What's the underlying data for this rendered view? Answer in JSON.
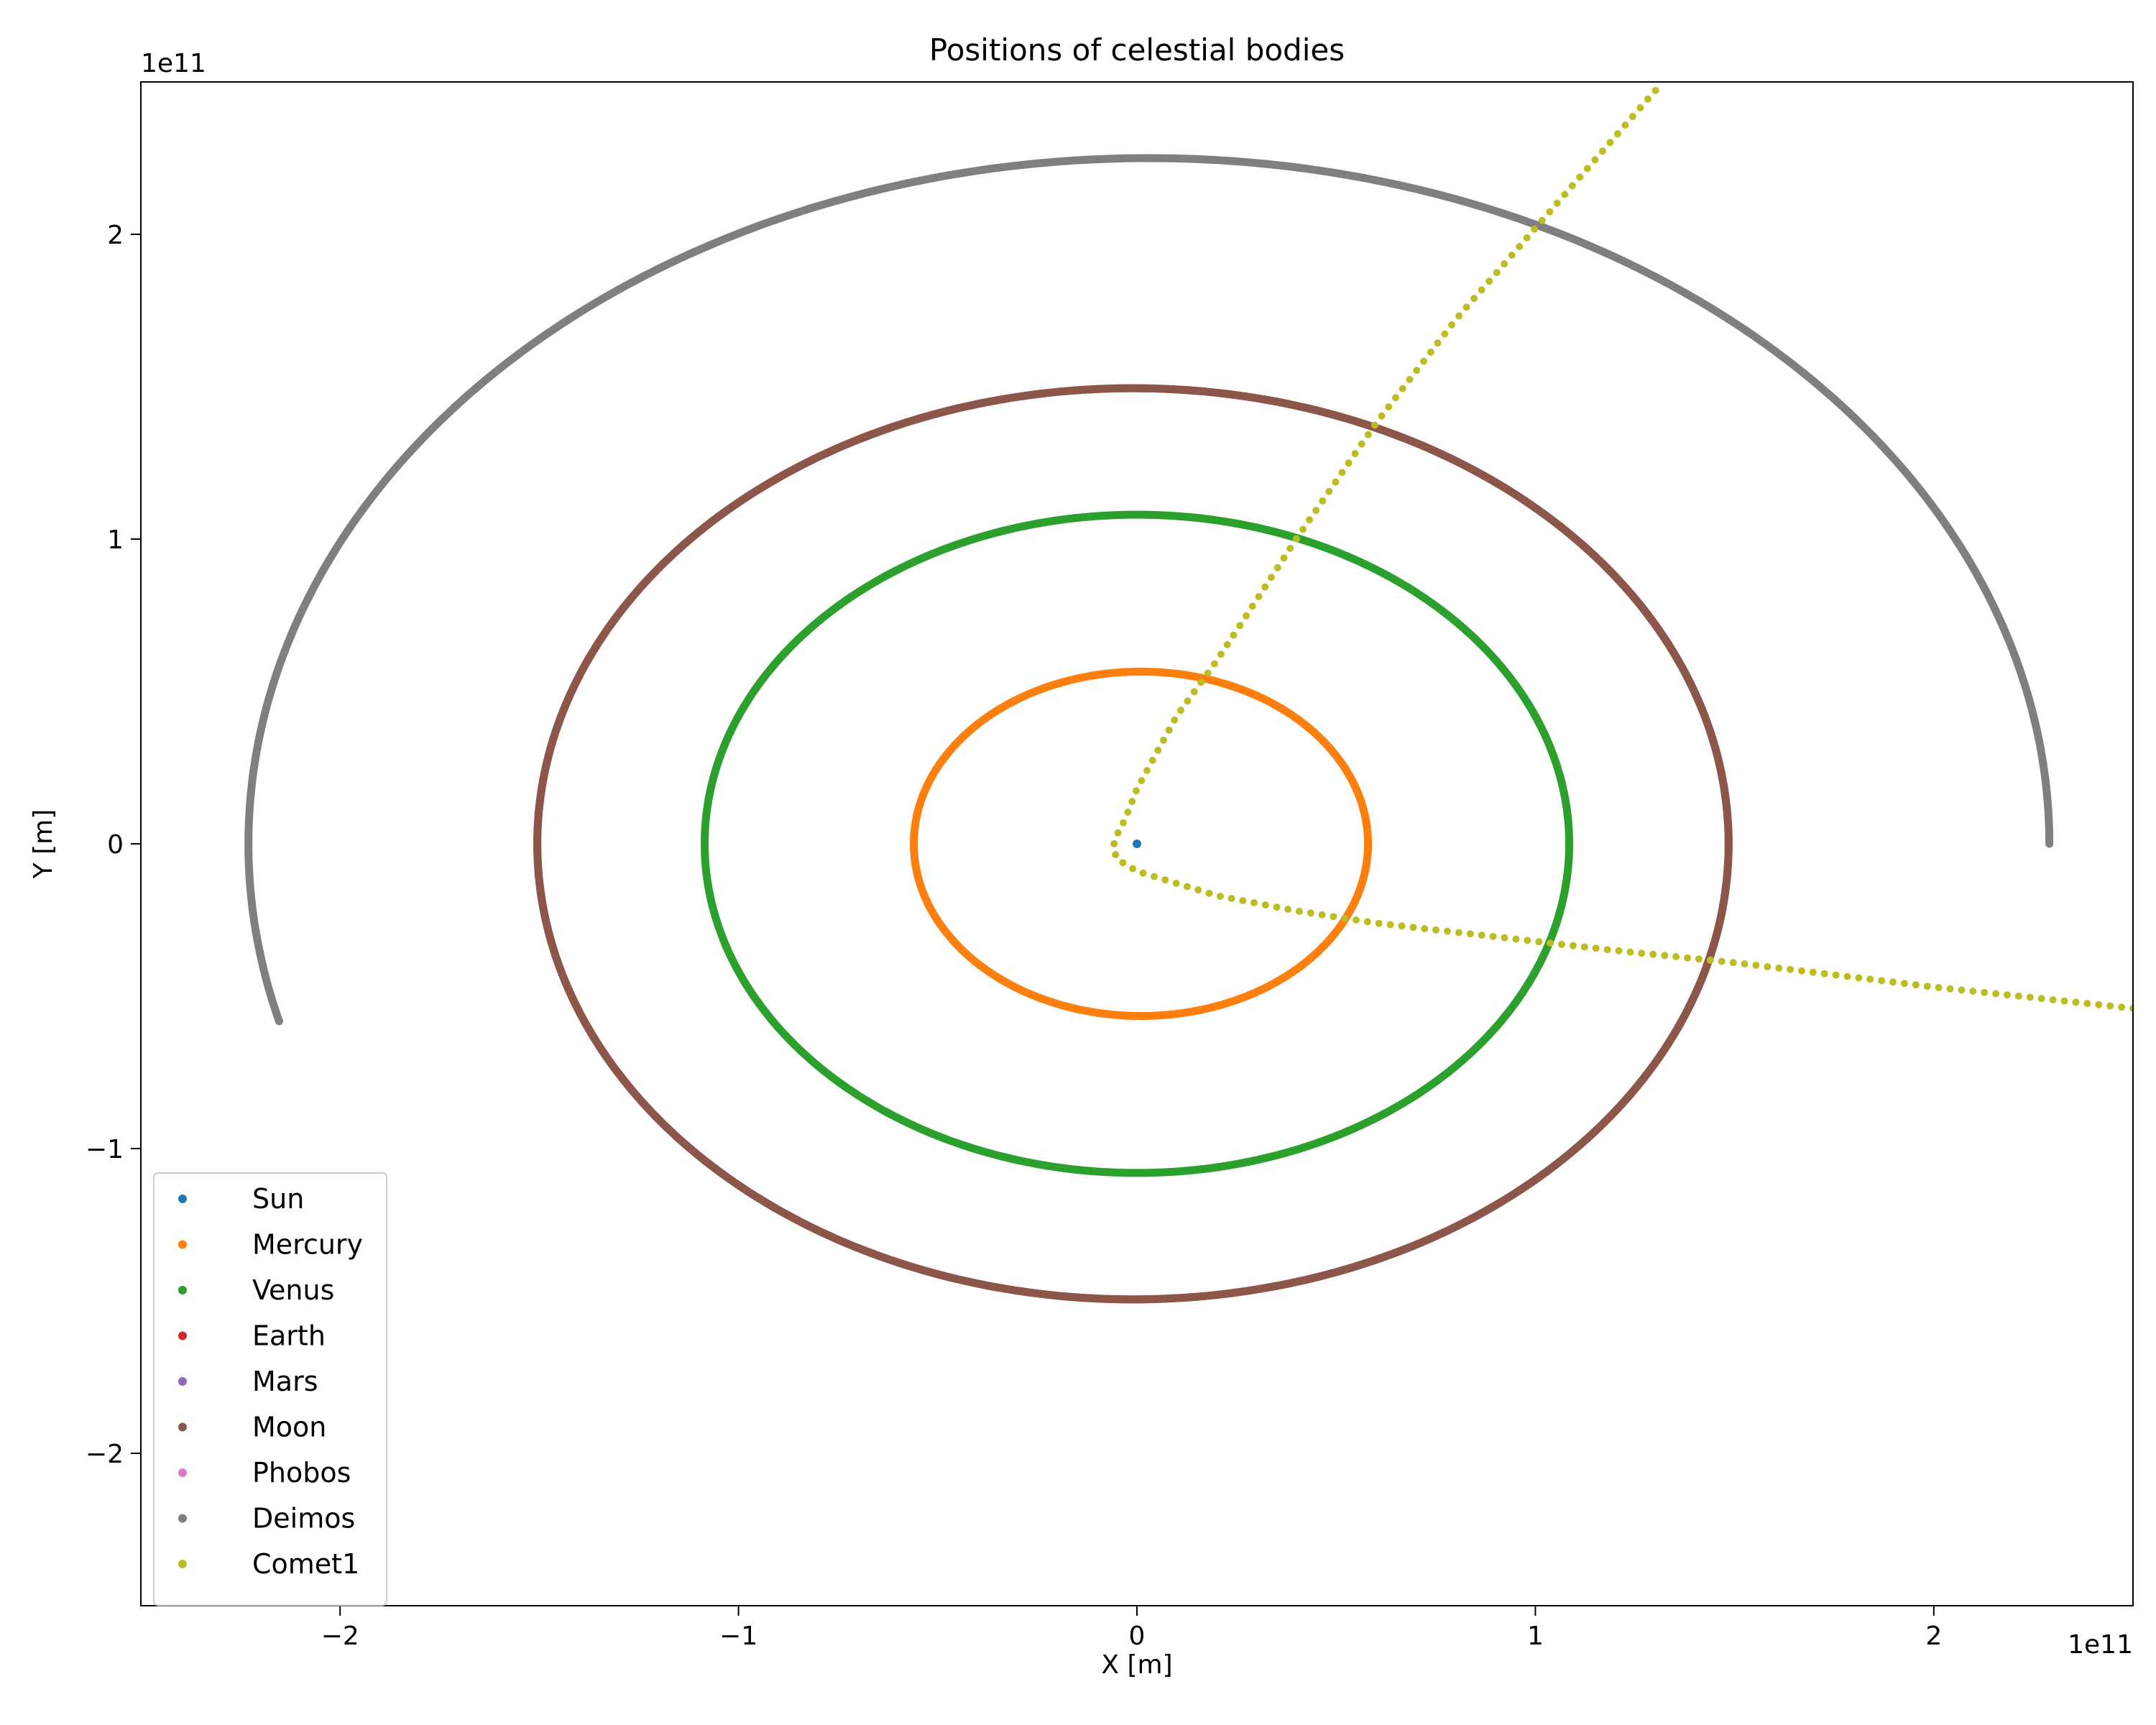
{
  "chart_data": {
    "type": "scatter",
    "title": "Positions of celestial bodies",
    "xlabel": "X [m]",
    "ylabel": "Y [m]",
    "x_offset_label": "1e11",
    "y_offset_label": "1e11",
    "xlim": [
      -2.5,
      2.5
    ],
    "ylim": [
      -2.5,
      2.5
    ],
    "grid": false,
    "legend_position": "lower-left",
    "x_ticks": [
      {
        "value": -2,
        "label": "−2"
      },
      {
        "value": -1,
        "label": "−1"
      },
      {
        "value": 0,
        "label": "0"
      },
      {
        "value": 1,
        "label": "1"
      },
      {
        "value": 2,
        "label": "2"
      }
    ],
    "y_ticks": [
      {
        "value": -2,
        "label": "−2"
      },
      {
        "value": -1,
        "label": "−1"
      },
      {
        "value": 0,
        "label": "0"
      },
      {
        "value": 1,
        "label": "1"
      },
      {
        "value": 2,
        "label": "2"
      }
    ],
    "series": [
      {
        "name": "Sun",
        "color": "#1f77b4",
        "kind": "point",
        "x": 0.0,
        "y": 0.0
      },
      {
        "name": "Mercury",
        "color": "#ff7f0e",
        "kind": "ellipse",
        "cx": 0.01,
        "cy": 0.0,
        "rx": 0.57,
        "ry": 0.565,
        "theta_start": 0,
        "theta_end": 360
      },
      {
        "name": "Venus",
        "color": "#2ca02c",
        "kind": "ellipse",
        "cx": 0.0,
        "cy": 0.0,
        "rx": 1.085,
        "ry": 1.08,
        "theta_start": 0,
        "theta_end": 360
      },
      {
        "name": "Earth",
        "color": "#d62728",
        "kind": "ellipse",
        "cx": -0.01,
        "cy": 0.0,
        "rx": 1.495,
        "ry": 1.495,
        "theta_start": 0,
        "theta_end": 360
      },
      {
        "name": "Mars",
        "color": "#9467bd",
        "kind": "none"
      },
      {
        "name": "Moon",
        "color": "#8c564b",
        "kind": "ellipse",
        "cx": -0.01,
        "cy": 0.0,
        "rx": 1.495,
        "ry": 1.495,
        "theta_start": 0,
        "theta_end": 360
      },
      {
        "name": "Phobos",
        "color": "#e377c2",
        "kind": "none"
      },
      {
        "name": "Deimos",
        "color": "#7f7f7f",
        "kind": "ellipse",
        "cx": 0.03,
        "cy": 0.0,
        "rx": 2.26,
        "ry": 2.25,
        "theta_start": 0,
        "theta_end": 195
      },
      {
        "name": "Comet1",
        "color": "#bcbd22",
        "kind": "polyline",
        "points": [
          [
            2.5,
            -0.54
          ],
          [
            2.0,
            -0.47
          ],
          [
            1.5,
            -0.39
          ],
          [
            1.2,
            -0.35
          ],
          [
            1.0,
            -0.32
          ],
          [
            0.8,
            -0.29
          ],
          [
            0.6,
            -0.26
          ],
          [
            0.4,
            -0.22
          ],
          [
            0.2,
            -0.17
          ],
          [
            0.1,
            -0.13
          ],
          [
            0.0,
            -0.09
          ],
          [
            -0.05,
            -0.05
          ],
          [
            -0.06,
            -0.01
          ],
          [
            -0.05,
            0.03
          ],
          [
            -0.03,
            0.08
          ],
          [
            0.0,
            0.18
          ],
          [
            0.05,
            0.3
          ],
          [
            0.1,
            0.42
          ],
          [
            0.2,
            0.6
          ],
          [
            0.4,
            1.0
          ],
          [
            0.6,
            1.38
          ],
          [
            0.8,
            1.72
          ],
          [
            1.0,
            2.02
          ],
          [
            1.2,
            2.32
          ],
          [
            1.32,
            2.5
          ]
        ]
      }
    ]
  }
}
